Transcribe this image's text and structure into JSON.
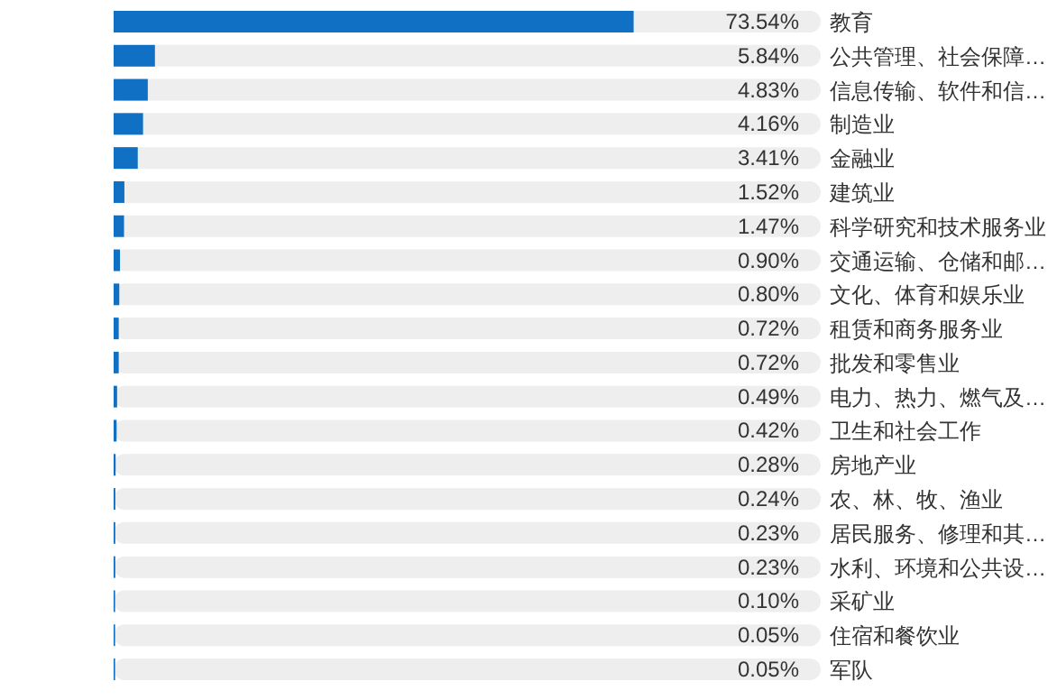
{
  "chart_data": {
    "type": "bar",
    "orientation": "horizontal",
    "categories": [
      "教育",
      "公共管理、社会保障…",
      "信息传输、软件和信…",
      "制造业",
      "金融业",
      "建筑业",
      "科学研究和技术服务业",
      "交通运输、仓储和邮…",
      "文化、体育和娱乐业",
      "租赁和商务服务业",
      "批发和零售业",
      "电力、热力、燃气及…",
      "卫生和社会工作",
      "房地产业",
      "农、林、牧、渔业",
      "居民服务、修理和其…",
      "水利、环境和公共设…",
      "采矿业",
      "住宿和餐饮业",
      "军队"
    ],
    "series": [
      {
        "color": "#1070c4",
        "values": [
          73.54,
          5.84,
          4.83,
          4.16,
          3.41,
          1.52,
          1.47,
          0.9,
          0.8,
          0.72,
          0.72,
          0.49,
          0.42,
          0.28,
          0.24,
          0.23,
          0.23,
          0.1,
          0.05,
          0.05
        ],
        "value_labels": [
          "73.54%",
          "5.84%",
          "4.83%",
          "4.16%",
          "3.41%",
          "1.52%",
          "1.47%",
          "0.90%",
          "0.80%",
          "0.72%",
          "0.72%",
          "0.49%",
          "0.42%",
          "0.28%",
          "0.24%",
          "0.23%",
          "0.23%",
          "0.10%",
          "0.05%",
          "0.05%"
        ]
      }
    ]
  }
}
